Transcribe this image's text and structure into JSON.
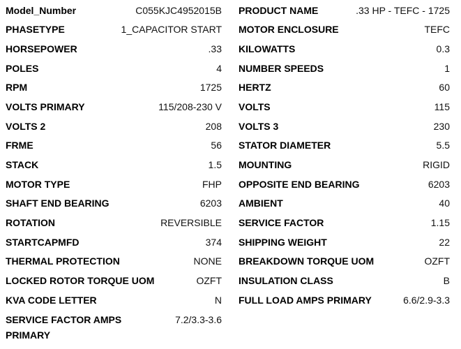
{
  "page": {
    "background_color": "#ffffff",
    "text_color": "#000000"
  },
  "spec_sheet": {
    "left_column": {
      "rows": [
        {
          "label": "Model_Number",
          "value": "C055KJC4952015B"
        },
        {
          "label": "PHASETYPE",
          "value": "1_CAPACITOR START"
        },
        {
          "label": "HORSEPOWER",
          "value": ".33"
        },
        {
          "label": "POLES",
          "value": "4"
        },
        {
          "label": "RPM",
          "value": "1725"
        },
        {
          "label": "VOLTS PRIMARY",
          "value": "115/208-230 V"
        },
        {
          "label": "VOLTS 2",
          "value": "208"
        },
        {
          "label": "FRME",
          "value": "56"
        },
        {
          "label": "STACK",
          "value": "1.5"
        },
        {
          "label": "MOTOR TYPE",
          "value": "FHP"
        },
        {
          "label": "SHAFT END BEARING",
          "value": "6203"
        },
        {
          "label": "ROTATION",
          "value": "REVERSIBLE"
        },
        {
          "label": "STARTCAPMFD",
          "value": "374"
        },
        {
          "label": "THERMAL PROTECTION",
          "value": "NONE"
        },
        {
          "label": "LOCKED ROTOR TORQUE UOM",
          "value": "OZFT"
        },
        {
          "label": "KVA CODE LETTER",
          "value": "N"
        },
        {
          "label": "SERVICE FACTOR AMPS PRIMARY",
          "value": "7.2/3.3-3.6"
        }
      ]
    },
    "right_column": {
      "rows": [
        {
          "label": "PRODUCT NAME",
          "value": ".33 HP - TEFC - 1725"
        },
        {
          "label": "MOTOR ENCLOSURE",
          "value": "TEFC"
        },
        {
          "label": "KILOWATTS",
          "value": "0.3"
        },
        {
          "label": "NUMBER SPEEDS",
          "value": "1"
        },
        {
          "label": "HERTZ",
          "value": "60"
        },
        {
          "label": "VOLTS",
          "value": "115"
        },
        {
          "label": "VOLTS 3",
          "value": "230"
        },
        {
          "label": "STATOR DIAMETER",
          "value": "5.5"
        },
        {
          "label": "MOUNTING",
          "value": "RIGID"
        },
        {
          "label": "OPPOSITE END BEARING",
          "value": "6203"
        },
        {
          "label": "AMBIENT",
          "value": "40"
        },
        {
          "label": "SERVICE FACTOR",
          "value": "1.15"
        },
        {
          "label": "SHIPPING WEIGHT",
          "value": "22"
        },
        {
          "label": "BREAKDOWN TORQUE UOM",
          "value": "OZFT"
        },
        {
          "label": "INSULATION CLASS",
          "value": "B"
        },
        {
          "label": "FULL LOAD AMPS PRIMARY",
          "value": "6.6/2.9-3.3"
        }
      ]
    }
  }
}
